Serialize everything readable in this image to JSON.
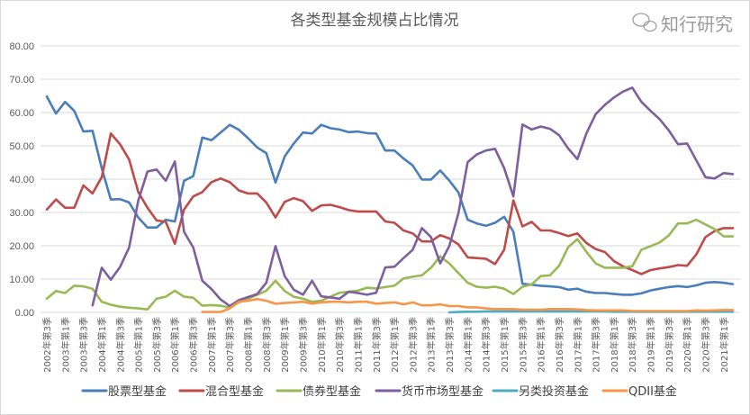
{
  "chart_data": {
    "type": "line",
    "title": "各类型基金规模占比情况",
    "xlabel": "",
    "ylabel": "",
    "ylim": [
      0,
      80
    ],
    "yticks": [
      "0.00",
      "10.00",
      "20.00",
      "30.00",
      "40.00",
      "50.00",
      "60.00",
      "70.00",
      "80.00"
    ],
    "grid": true,
    "legend_position": "bottom",
    "x_frequency": "quarterly, 2002年第3季 to 2021年第2季 (labels every other quarter)",
    "x_labels": [
      "2002年第3季",
      "2003年第1季",
      "2003年第3季",
      "2004年第1季",
      "2004年第3季",
      "2005年第1季",
      "2005年第3季",
      "2006年第1季",
      "2006年第3季",
      "2007年第1季",
      "2007年第3季",
      "2008年第1季",
      "2008年第3季",
      "2009年第1季",
      "2009年第3季",
      "2010年第1季",
      "2010年第3季",
      "2011年第1季",
      "2011年第3季",
      "2012年第1季",
      "2012年第3季",
      "2013年第1季",
      "2013年第3季",
      "2014年第1季",
      "2014年第3季",
      "2015年第1季",
      "2015年第3季",
      "2016年第1季",
      "2016年第3季",
      "2017年第1季",
      "2017年第3季",
      "2018年第1季",
      "2018年第3季",
      "2019年第1季",
      "2019年第3季",
      "2020年第1季",
      "2020年第3季",
      "2021年第1季"
    ],
    "series": [
      {
        "name": "股票型基金",
        "color": "#4a7ebb",
        "values": [
          64.8,
          59.7,
          63.2,
          60.5,
          54.3,
          54.5,
          43.3,
          33.9,
          34,
          33,
          28.5,
          25.5,
          25.5,
          27.8,
          27.3,
          39.5,
          40.9,
          52.5,
          51.7,
          54,
          56.3,
          54.8,
          52.3,
          49.5,
          47.8,
          39,
          46.8,
          50.7,
          54,
          53.7,
          56.3,
          55.3,
          54.9,
          54.1,
          54.3,
          53.8,
          53.7,
          48.6,
          48.6,
          46.2,
          44.1,
          39.9,
          39.9,
          42.6,
          39.6,
          36,
          27.8,
          26.7,
          26,
          26.9,
          28.7,
          24.2,
          8.6,
          8.3,
          8,
          7.8,
          7.6,
          6.8,
          7.1,
          6.2,
          5.8,
          5.8,
          5.5,
          5.3,
          5.3,
          5.7,
          6.6,
          7.1,
          7.6,
          7.9,
          7.6,
          8.1,
          8.9,
          9.1,
          8.9,
          8.5
        ]
      },
      {
        "name": "混合型基金",
        "color": "#be4b48",
        "values": [
          30.9,
          33.9,
          31.4,
          31.4,
          38.1,
          35.7,
          40.6,
          53.7,
          50.5,
          45.9,
          36.1,
          31.4,
          27.6,
          27.2,
          20.6,
          30.9,
          34.8,
          36.1,
          39.1,
          40.2,
          39.1,
          36.6,
          35.7,
          35.7,
          33,
          28.5,
          33.2,
          34.3,
          33.4,
          30.5,
          32.1,
          32.3,
          31.6,
          30.7,
          30.3,
          30.3,
          30.3,
          27.3,
          26.9,
          24.6,
          23.7,
          21.3,
          21.3,
          23.2,
          22.2,
          20.4,
          16.5,
          16.3,
          16.1,
          14.5,
          18.8,
          33.6,
          25.8,
          27.2,
          24.6,
          24.6,
          23.8,
          22.9,
          23.7,
          20.8,
          19,
          18.1,
          15.4,
          13.8,
          12.7,
          11.5,
          12.7,
          13.2,
          13.6,
          14.2,
          14,
          17.4,
          22.6,
          24.4,
          25.3,
          25.3
        ]
      },
      {
        "name": "债券型基金",
        "color": "#98b954",
        "values": [
          4.1,
          6.4,
          5.8,
          8,
          7.8,
          7.1,
          3.2,
          2.3,
          1.7,
          1.4,
          1.2,
          0.9,
          4.1,
          4.7,
          6.5,
          4.7,
          4.4,
          2,
          2.2,
          2,
          1.4,
          3,
          4.1,
          5.3,
          6.5,
          9.5,
          6.4,
          4.7,
          4.1,
          3.2,
          3.5,
          4.7,
          5.9,
          6.2,
          6.5,
          7.4,
          7.2,
          7.6,
          8,
          10.2,
          10.7,
          11.1,
          13.4,
          16.8,
          14.7,
          11.8,
          8.9,
          7.7,
          7.4,
          7.7,
          7.1,
          5.5,
          7.7,
          8.4,
          10.9,
          11.1,
          14,
          19.6,
          22,
          18.1,
          14.7,
          13.4,
          13.4,
          13.4,
          13.8,
          18.8,
          19.9,
          21,
          23.1,
          26.7,
          26.7,
          27.8,
          26.4,
          25,
          22.8,
          22.8
        ]
      },
      {
        "name": "货币市场型基金",
        "color": "#7d5fa0",
        "values": [
          null,
          null,
          null,
          null,
          null,
          2.1,
          13.4,
          9.8,
          13.6,
          19.5,
          33.6,
          42.3,
          42.9,
          39.5,
          45.3,
          24.2,
          19.5,
          9.5,
          7,
          3.9,
          1.9,
          3.7,
          4.6,
          5.5,
          8.9,
          19.9,
          10.9,
          6.8,
          5.3,
          9.5,
          4.8,
          4.5,
          4.1,
          6.2,
          5.8,
          5.3,
          5.9,
          13.5,
          13.7,
          16.3,
          18.8,
          25.3,
          22.6,
          14.7,
          19.9,
          29.8,
          45.1,
          47.4,
          48.6,
          49.1,
          43.3,
          34.8,
          56.4,
          54.9,
          55.8,
          55.1,
          53.2,
          49.2,
          46,
          53.8,
          59.5,
          62.3,
          64.5,
          66.3,
          67.5,
          63.2,
          60.5,
          58,
          54.6,
          50.5,
          50.7,
          45.6,
          40.6,
          40.2,
          41.8,
          41.5
        ]
      },
      {
        "name": "另类投资基金",
        "color": "#4bacc6",
        "values": [
          null,
          null,
          null,
          null,
          null,
          null,
          null,
          null,
          null,
          null,
          null,
          null,
          null,
          null,
          null,
          null,
          null,
          null,
          null,
          null,
          null,
          null,
          null,
          null,
          null,
          null,
          null,
          null,
          null,
          null,
          null,
          null,
          null,
          null,
          null,
          null,
          null,
          null,
          null,
          null,
          null,
          null,
          null,
          null,
          0,
          0.1,
          0.2,
          0.2,
          0.3,
          0.3,
          0.3,
          0.3,
          0.3,
          0.3,
          0.3,
          0.3,
          0.3,
          0.3,
          0.3,
          0.3,
          0.3,
          0.3,
          0.2,
          0.2,
          0.2,
          0.2,
          0.2,
          0.2,
          0.2,
          0.2,
          0.2,
          0.2,
          0.2,
          0.2,
          0.2,
          0.2
        ]
      },
      {
        "name": "QDII基金",
        "color": "#f79646",
        "values": [
          null,
          null,
          null,
          null,
          null,
          null,
          null,
          null,
          null,
          null,
          null,
          null,
          null,
          null,
          null,
          null,
          null,
          0.1,
          0.1,
          0.1,
          1.2,
          3.2,
          3.5,
          4,
          3.5,
          2.6,
          2.8,
          3,
          3.2,
          2.6,
          3,
          3.2,
          3.2,
          3,
          3.2,
          3.2,
          2.6,
          2.8,
          3,
          2.4,
          3,
          2.1,
          2.1,
          2.4,
          1.9,
          1.9,
          1.5,
          1.5,
          1.2,
          1,
          1,
          1,
          0.8,
          0.8,
          0.8,
          1,
          1,
          1,
          0.9,
          0.7,
          0.6,
          0.6,
          0.6,
          0.6,
          0.4,
          0.4,
          0.4,
          0.4,
          0.4,
          0.4,
          0.4,
          0.6,
          0.5,
          0.6,
          0.7,
          0.7
        ]
      }
    ]
  },
  "watermark": "知行研究"
}
